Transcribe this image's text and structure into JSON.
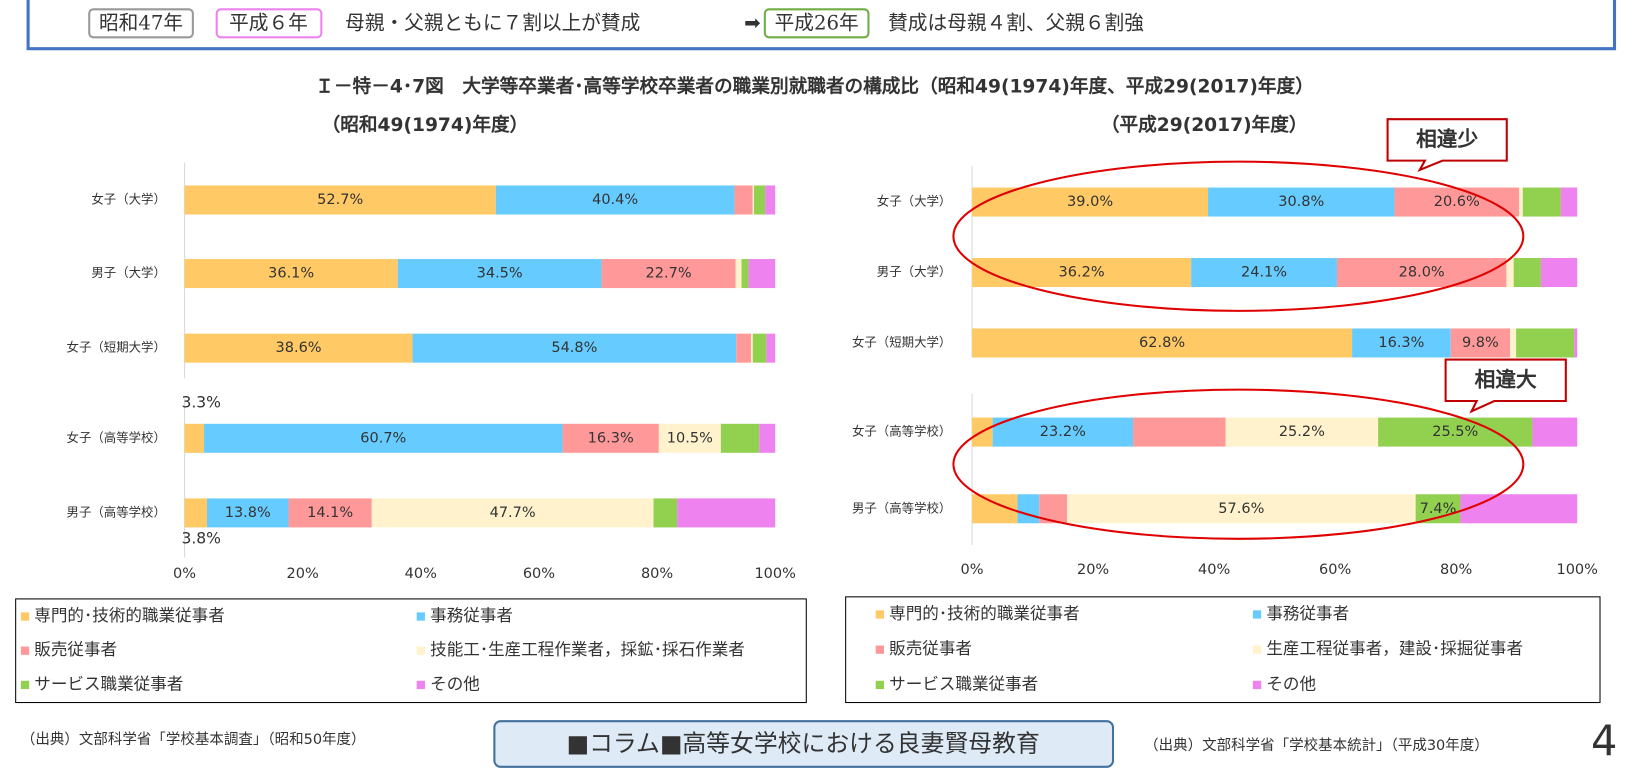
{
  "header": {
    "items": [
      "昭和47年",
      "平成６年",
      "母親・父親ともに７割以上が賛成",
      "➡",
      "平成26年",
      "賛成は母親４割、父親６割強"
    ]
  },
  "figure_title": "Ｉ－特－4･7図　大学等卒業者･高等学校卒業者の職業別就職者の構成比（昭和49(1974)年度、平成29(2017)年度）",
  "chart_data": [
    {
      "type": "bar",
      "orientation": "horizontal",
      "stacked": true,
      "subtitle": "（昭和49(1974)年度）",
      "categories": [
        "女子（大学）",
        "男子（大学）",
        "女子（短期大学）",
        "女子（高等学校）",
        "男子（高等学校）"
      ],
      "xlim": [
        0,
        100
      ],
      "xticks": [
        {
          "value": 0,
          "label": "0%"
        },
        {
          "value": 20,
          "label": "20%"
        },
        {
          "value": 40,
          "label": "40%"
        },
        {
          "value": 60,
          "label": "60%"
        },
        {
          "value": 80,
          "label": "80%"
        },
        {
          "value": 100,
          "label": "100%"
        }
      ],
      "series": [
        {
          "name": "専門的･技術的職業従事者",
          "color": "#FFC966",
          "values": [
            52.7,
            36.1,
            38.6,
            3.3,
            3.8
          ],
          "value_labels": [
            "52.7%",
            "36.1%",
            "38.6%",
            "3.3%",
            "3.8%"
          ]
        },
        {
          "name": "事務従事者",
          "color": "#66CCFF",
          "values": [
            40.4,
            34.5,
            54.8,
            60.7,
            13.8
          ],
          "value_labels": [
            "40.4%",
            "34.5%",
            "54.8%",
            "60.7%",
            "13.8%"
          ]
        },
        {
          "name": "販売従事者",
          "color": "#FF9999",
          "values": [
            3.1,
            22.7,
            2.5,
            16.3,
            14.1
          ],
          "value_labels": [
            null,
            "22.7%",
            null,
            "16.3%",
            "14.1%"
          ]
        },
        {
          "name": "技能工･生産工程作業者，採鉱･採石作業者",
          "color": "#FFF2CC",
          "values": [
            0.2,
            1.0,
            0.3,
            10.5,
            47.7
          ],
          "value_labels": [
            null,
            null,
            null,
            "10.5%",
            "47.7%"
          ]
        },
        {
          "name": "サービス職業従事者",
          "color": "#92D050",
          "values": [
            1.9,
            1.2,
            2.3,
            6.5,
            4.0
          ],
          "value_labels": [
            null,
            null,
            null,
            null,
            null
          ]
        },
        {
          "name": "その他",
          "color": "#EE82EE",
          "values": [
            1.7,
            4.5,
            1.5,
            2.7,
            16.6
          ],
          "value_labels": [
            null,
            null,
            null,
            null,
            null
          ]
        }
      ]
    },
    {
      "type": "bar",
      "orientation": "horizontal",
      "stacked": true,
      "subtitle": "（平成29(2017)年度）",
      "categories": [
        "女子（大学）",
        "男子（大学）",
        "女子（短期大学）",
        "女子（高等学校）",
        "男子（高等学校）"
      ],
      "xlim": [
        0,
        100
      ],
      "xticks": [
        {
          "value": 0,
          "label": "0%"
        },
        {
          "value": 20,
          "label": "20%"
        },
        {
          "value": 40,
          "label": "40%"
        },
        {
          "value": 60,
          "label": "60%"
        },
        {
          "value": 80,
          "label": "80%"
        },
        {
          "value": 100,
          "label": "100%"
        }
      ],
      "annotations": [
        "相違少",
        "相違大"
      ],
      "series": [
        {
          "name": "専門的･技術的職業従事者",
          "color": "#FFC966",
          "values": [
            39.0,
            36.2,
            62.8,
            3.4,
            7.5
          ],
          "value_labels": [
            "39.0%",
            "36.2%",
            "62.8%",
            null,
            null
          ]
        },
        {
          "name": "事務従事者",
          "color": "#66CCFF",
          "values": [
            30.8,
            24.1,
            16.3,
            23.2,
            3.6
          ],
          "value_labels": [
            "30.8%",
            "24.1%",
            "16.3%",
            "23.2%",
            null
          ]
        },
        {
          "name": "販売従事者",
          "color": "#FF9999",
          "values": [
            20.6,
            28.0,
            9.8,
            15.3,
            4.6
          ],
          "value_labels": [
            "20.6%",
            "28.0%",
            "9.8%",
            null,
            null
          ]
        },
        {
          "name": "生産工程従事者，建設･採掘従事者",
          "color": "#FFF2CC",
          "values": [
            0.6,
            1.2,
            1.0,
            25.2,
            57.6
          ],
          "value_labels": [
            null,
            null,
            null,
            "25.2%",
            "57.6%"
          ]
        },
        {
          "name": "サービス職業従事者",
          "color": "#92D050",
          "values": [
            6.3,
            4.5,
            9.6,
            25.5,
            7.4
          ],
          "value_labels": [
            null,
            null,
            null,
            "25.5%",
            "7.4%"
          ]
        },
        {
          "name": "その他",
          "color": "#EE82EE",
          "values": [
            2.7,
            6.0,
            0.5,
            7.4,
            19.3
          ],
          "value_labels": [
            null,
            null,
            null,
            null,
            null
          ]
        }
      ]
    }
  ],
  "sources": [
    "（出典）文部科学省「学校基本調査」（昭和50年度）",
    "（出典）文部科学省「学校基本統計」（平成30年度）"
  ],
  "column_button": "■コラム■高等女学校における良妻賢母教育",
  "page_number": "4"
}
